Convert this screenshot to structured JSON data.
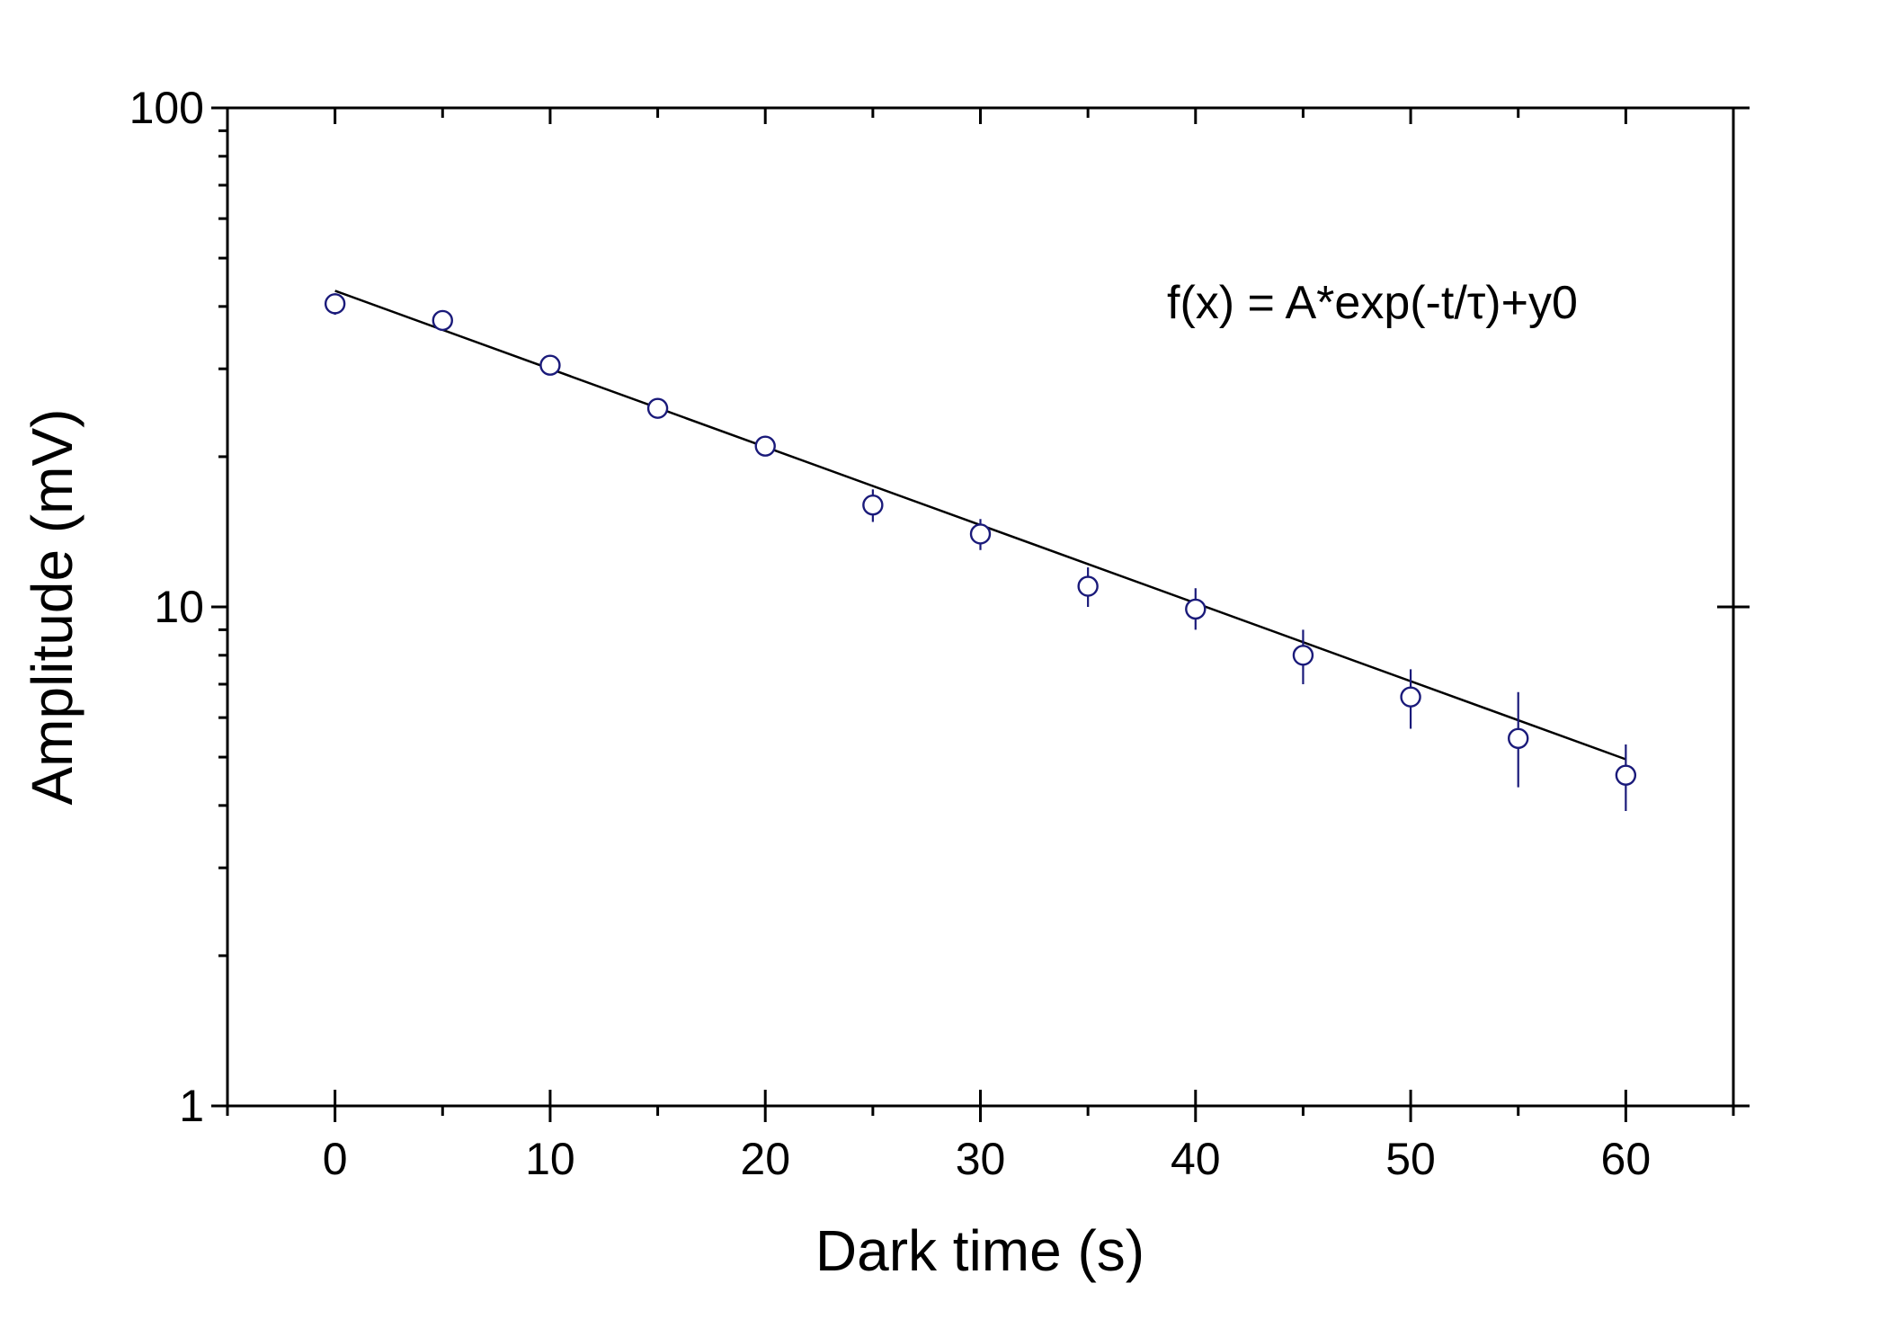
{
  "chart_data": {
    "type": "scatter",
    "title": "",
    "xlabel": "Dark time (s)",
    "ylabel": "Amplitude (mV)",
    "xlim": [
      -5,
      65
    ],
    "ylim": [
      1,
      100
    ],
    "yscale": "log",
    "grid": false,
    "x_ticks": [
      0,
      10,
      20,
      30,
      40,
      50,
      60
    ],
    "x_tick_labels": [
      "0",
      "10",
      "20",
      "30",
      "40",
      "50",
      "60"
    ],
    "y_ticks": [
      1,
      10,
      100
    ],
    "y_tick_labels": [
      "1",
      "10",
      "100"
    ],
    "annotation": "f(x) = A*exp(-t/τ)+y0",
    "series": [
      {
        "kind": "points_with_error_bars",
        "marker": "open-circle",
        "color": "#1a1a7a",
        "x": [
          0,
          5,
          10,
          15,
          20,
          25,
          30,
          35,
          40,
          45,
          50,
          55,
          60
        ],
        "y": [
          40.5,
          37.5,
          30.5,
          25.0,
          21.0,
          16.0,
          14.0,
          11.0,
          9.9,
          8.0,
          6.6,
          5.45,
          4.6
        ],
        "y_err_low": [
          2.0,
          1.5,
          1.2,
          1.0,
          0.8,
          1.2,
          1.0,
          1.0,
          0.9,
          1.0,
          0.9,
          1.1,
          0.7
        ],
        "y_err_high": [
          2.0,
          1.5,
          1.2,
          1.0,
          0.8,
          1.2,
          1.0,
          1.0,
          1.0,
          1.0,
          0.9,
          1.3,
          0.7
        ]
      },
      {
        "kind": "fit_line",
        "color": "#000000",
        "x": [
          0,
          60
        ],
        "y": [
          43.0,
          4.95
        ]
      }
    ]
  }
}
